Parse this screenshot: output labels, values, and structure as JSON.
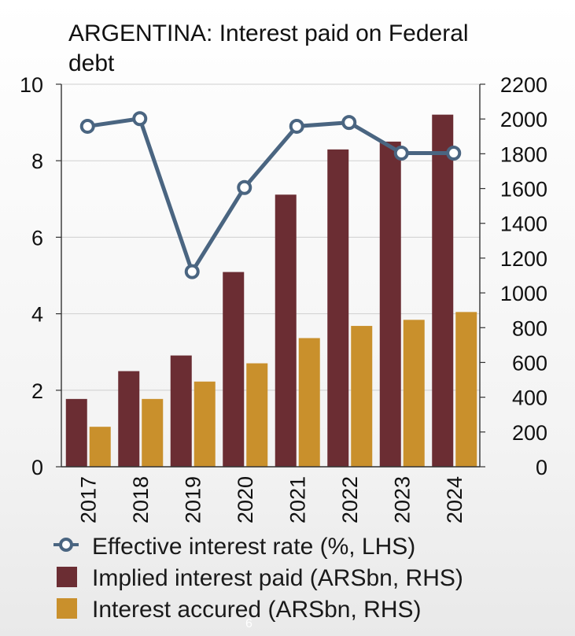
{
  "chart_data": {
    "type": "bar",
    "title_lines": [
      "ARGENTINA: Interest paid on Federal",
      "debt"
    ],
    "categories": [
      "2017",
      "2018",
      "2019",
      "2020",
      "2021",
      "2022",
      "2023",
      "2024"
    ],
    "series": [
      {
        "name": "Effective interest rate (%, LHS)",
        "kind": "line",
        "axis": "left",
        "values": [
          8.9,
          9.1,
          5.1,
          7.3,
          8.9,
          9.0,
          8.2,
          8.2
        ],
        "color": "#4a6581"
      },
      {
        "name": "Implied interest paid (ARSbn, RHS)",
        "kind": "bar",
        "axis": "right",
        "values": [
          390,
          550,
          640,
          1120,
          1565,
          1825,
          1870,
          2025
        ],
        "color": "#6b2d33"
      },
      {
        "name": "Interest accured (ARSbn, RHS)",
        "kind": "bar",
        "axis": "right",
        "values": [
          230,
          390,
          490,
          595,
          740,
          810,
          845,
          890
        ],
        "color": "#c9902c"
      }
    ],
    "left_axis": {
      "ylim": [
        0,
        10
      ],
      "ticks": [
        "0",
        "2",
        "4",
        "6",
        "8",
        "10"
      ]
    },
    "right_axis": {
      "ylim": [
        0,
        2200
      ],
      "ticks": [
        "0",
        "200",
        "400",
        "600",
        "800",
        "1000",
        "1200",
        "1400",
        "1600",
        "1800",
        "2000",
        "2200"
      ]
    },
    "grid": true,
    "legend_position": "bottom"
  },
  "page_number": "6"
}
